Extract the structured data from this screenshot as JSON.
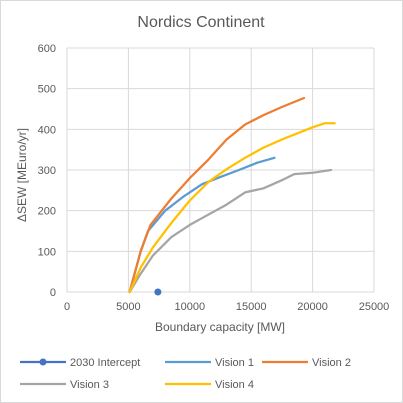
{
  "chart_data": {
    "type": "line",
    "title": "Nordics Continent",
    "xlabel": "Boundary capacity [MW]",
    "ylabel": "ΔSEW [MEuro/yr]",
    "xlim": [
      0,
      25000
    ],
    "ylim": [
      0,
      600
    ],
    "xticks": [
      0,
      5000,
      10000,
      15000,
      20000,
      25000
    ],
    "yticks": [
      0,
      100,
      200,
      300,
      400,
      500,
      600
    ],
    "grid": true,
    "legend_position": "bottom",
    "series": [
      {
        "name": "2030 Intercept",
        "color": "#4472c4",
        "marker": "circle",
        "points": [
          [
            7400,
            0
          ]
        ]
      },
      {
        "name": "Vision 1",
        "color": "#5b9bd5",
        "points": [
          [
            5100,
            0
          ],
          [
            6000,
            100
          ],
          [
            6600,
            150
          ],
          [
            8000,
            200
          ],
          [
            9500,
            235
          ],
          [
            11000,
            265
          ],
          [
            12500,
            283
          ],
          [
            14000,
            300
          ],
          [
            15500,
            318
          ],
          [
            16900,
            330
          ]
        ]
      },
      {
        "name": "Vision 2",
        "color": "#ed7d31",
        "points": [
          [
            5100,
            0
          ],
          [
            6000,
            100
          ],
          [
            6800,
            165
          ],
          [
            8500,
            230
          ],
          [
            10000,
            280
          ],
          [
            11500,
            325
          ],
          [
            13000,
            375
          ],
          [
            14500,
            412
          ],
          [
            16000,
            435
          ],
          [
            17500,
            455
          ],
          [
            19300,
            477
          ]
        ]
      },
      {
        "name": "Vision 3",
        "color": "#a5a5a5",
        "points": [
          [
            5100,
            0
          ],
          [
            6000,
            45
          ],
          [
            7000,
            90
          ],
          [
            8500,
            135
          ],
          [
            10000,
            165
          ],
          [
            11500,
            190
          ],
          [
            13000,
            215
          ],
          [
            14500,
            245
          ],
          [
            16000,
            255
          ],
          [
            17500,
            275
          ],
          [
            18500,
            290
          ],
          [
            20000,
            293
          ],
          [
            21500,
            300
          ]
        ]
      },
      {
        "name": "Vision 4",
        "color": "#ffc000",
        "points": [
          [
            5100,
            0
          ],
          [
            6000,
            60
          ],
          [
            7000,
            110
          ],
          [
            8500,
            170
          ],
          [
            10000,
            225
          ],
          [
            11500,
            270
          ],
          [
            13000,
            302
          ],
          [
            14500,
            330
          ],
          [
            16000,
            355
          ],
          [
            17500,
            375
          ],
          [
            19000,
            393
          ],
          [
            20000,
            405
          ],
          [
            21000,
            415
          ],
          [
            21800,
            415
          ]
        ]
      }
    ]
  }
}
